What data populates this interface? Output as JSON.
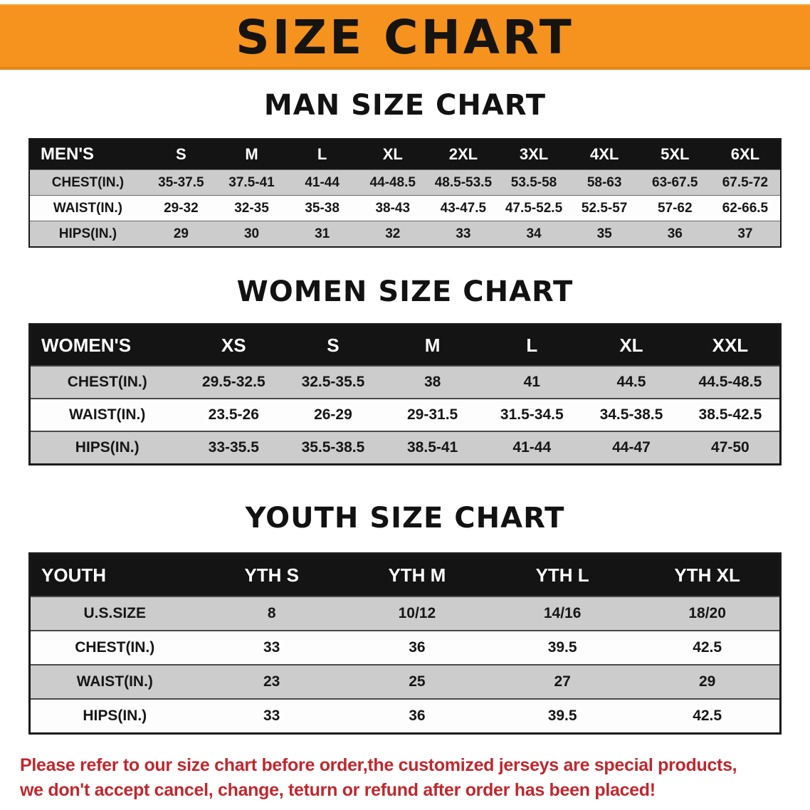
{
  "banner": {
    "title": "SIZE CHART"
  },
  "sections": [
    {
      "heading": "MAN SIZE CHART",
      "table": {
        "header": [
          "MEN'S",
          "S",
          "M",
          "L",
          "XL",
          "2XL",
          "3XL",
          "4XL",
          "5XL",
          "6XL"
        ],
        "rows": [
          [
            "CHEST(IN.)",
            "35-37.5",
            "37.5-41",
            "41-44",
            "44-48.5",
            "48.5-53.5",
            "53.5-58",
            "58-63",
            "63-67.5",
            "67.5-72"
          ],
          [
            "WAIST(IN.)",
            "29-32",
            "32-35",
            "35-38",
            "38-43",
            "43-47.5",
            "47.5-52.5",
            "52.5-57",
            "57-62",
            "62-66.5"
          ],
          [
            "HIPS(IN.)",
            "29",
            "30",
            "31",
            "32",
            "33",
            "34",
            "35",
            "36",
            "37"
          ]
        ]
      }
    },
    {
      "heading": "WOMEN SIZE CHART",
      "table": {
        "header": [
          "WOMEN'S",
          "XS",
          "S",
          "M",
          "L",
          "XL",
          "XXL"
        ],
        "rows": [
          [
            "CHEST(IN.)",
            "29.5-32.5",
            "32.5-35.5",
            "38",
            "41",
            "44.5",
            "44.5-48.5"
          ],
          [
            "WAIST(IN.)",
            "23.5-26",
            "26-29",
            "29-31.5",
            "31.5-34.5",
            "34.5-38.5",
            "38.5-42.5"
          ],
          [
            "HIPS(IN.)",
            "33-35.5",
            "35.5-38.5",
            "38.5-41",
            "41-44",
            "44-47",
            "47-50"
          ]
        ]
      }
    },
    {
      "heading": "YOUTH SIZE CHART",
      "table": {
        "header": [
          "YOUTH",
          "YTH S",
          "YTH M",
          "YTH L",
          "YTH XL"
        ],
        "rows": [
          [
            "U.S.SIZE",
            "8",
            "10/12",
            "14/16",
            "18/20"
          ],
          [
            "CHEST(IN.)",
            "33",
            "36",
            "39.5",
            "42.5"
          ],
          [
            "WAIST(IN.)",
            "23",
            "25",
            "27",
            "29"
          ],
          [
            "HIPS(IN.)",
            "33",
            "36",
            "39.5",
            "42.5"
          ]
        ]
      }
    }
  ],
  "footer": {
    "line1": "Please refer to our size chart before order,the customized jerseys are special products,",
    "line2": "we don't accept cancel, change, teturn or refund after order has been placed!"
  },
  "colors": {
    "banner_bg": "#f6921e",
    "table_header_bg": "#141414",
    "row_alt_bg": "#cccccc",
    "footer_text": "#c0272d"
  }
}
